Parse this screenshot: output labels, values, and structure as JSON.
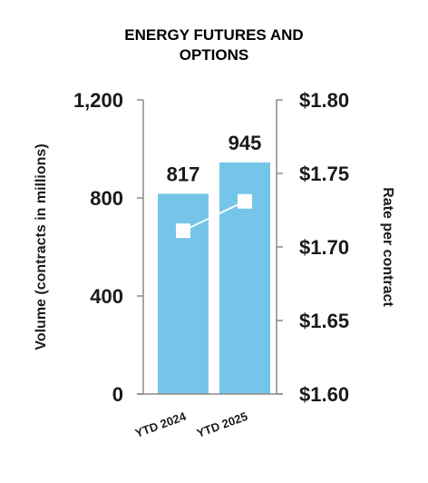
{
  "chart_data": {
    "type": "bar",
    "title_lines": [
      "ENERGY FUTURES AND",
      "OPTIONS"
    ],
    "categories": [
      "YTD 2024",
      "YTD 2025"
    ],
    "series": [
      {
        "values": [
          817,
          945
        ],
        "color": "#75C5E8",
        "axis": "left"
      },
      {
        "values": [
          1.711,
          1.731
        ],
        "axis": "right",
        "type": "line"
      }
    ],
    "data_labels": [
      "817",
      "945"
    ],
    "ylabel": "Volume (contracts in millions)",
    "y2label": "Rate per contract",
    "ylim": [
      0,
      1200
    ],
    "y2lim": [
      1.6,
      1.8
    ],
    "y_ticks": [
      "0",
      "400",
      "800",
      "1,200"
    ],
    "y2_ticks": [
      "$1.60",
      "$1.65",
      "$1.70",
      "$1.75",
      "$1.80"
    ],
    "grid": false
  }
}
